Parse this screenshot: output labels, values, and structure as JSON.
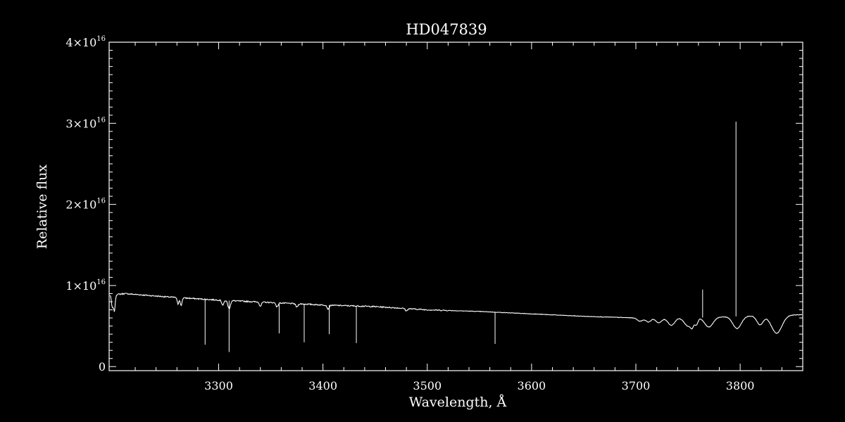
{
  "chart_data": {
    "type": "line",
    "title": "HD047839",
    "xlabel": "Wavelength, Å",
    "ylabel": "Relative flux",
    "xlim": [
      3195,
      3860
    ],
    "ylim": [
      -0.05,
      4.0
    ],
    "y_unit_exponent": "16",
    "x_ticks": [
      3300,
      3400,
      3500,
      3600,
      3700,
      3800
    ],
    "y_ticks": [
      0,
      1,
      2,
      3,
      4
    ],
    "y_tick_labels": [
      {
        "mantissa": "0",
        "exp": ""
      },
      {
        "mantissa": "1×10",
        "exp": "16"
      },
      {
        "mantissa": "2×10",
        "exp": "16"
      },
      {
        "mantissa": "3×10",
        "exp": "16"
      },
      {
        "mantissa": "4×10",
        "exp": "16"
      }
    ],
    "grid": false,
    "background_color": "#000000",
    "foreground_color": "#ffffff",
    "series": [
      {
        "continuum": [
          [
            3195,
            0.88
          ],
          [
            3210,
            0.9
          ],
          [
            3250,
            0.86
          ],
          [
            3300,
            0.82
          ],
          [
            3350,
            0.79
          ],
          [
            3400,
            0.76
          ],
          [
            3450,
            0.74
          ],
          [
            3500,
            0.7
          ],
          [
            3550,
            0.68
          ],
          [
            3600,
            0.65
          ],
          [
            3650,
            0.62
          ],
          [
            3700,
            0.6
          ],
          [
            3750,
            0.6
          ],
          [
            3800,
            0.62
          ],
          [
            3860,
            0.64
          ]
        ],
        "absorption_lines": [
          {
            "x": 3198,
            "depth": 0.15,
            "width": 0.8
          },
          {
            "x": 3200,
            "depth": 0.2,
            "width": 0.8
          },
          {
            "x": 3261,
            "depth": 0.08,
            "width": 0.8
          },
          {
            "x": 3264,
            "depth": 0.1,
            "width": 0.8
          },
          {
            "x": 3304,
            "depth": 0.06,
            "width": 1.0
          },
          {
            "x": 3310,
            "depth": 0.1,
            "width": 1.2
          },
          {
            "x": 3340,
            "depth": 0.05,
            "width": 1.0
          },
          {
            "x": 3356,
            "depth": 0.05,
            "width": 1.0
          },
          {
            "x": 3375,
            "depth": 0.04,
            "width": 1.0
          },
          {
            "x": 3405,
            "depth": 0.05,
            "width": 1.0
          },
          {
            "x": 3480,
            "depth": 0.03,
            "width": 1.0
          },
          {
            "x": 3704,
            "depth": 0.04,
            "width": 2.5
          },
          {
            "x": 3712,
            "depth": 0.05,
            "width": 2.5
          },
          {
            "x": 3722,
            "depth": 0.06,
            "width": 2.8
          },
          {
            "x": 3734,
            "depth": 0.09,
            "width": 3.2
          },
          {
            "x": 3750,
            "depth": 0.1,
            "width": 3.5
          },
          {
            "x": 3754,
            "depth": 0.08,
            "width": 1.5
          },
          {
            "x": 3758,
            "depth": 0.08,
            "width": 1.5
          },
          {
            "x": 3770,
            "depth": 0.12,
            "width": 4.0
          },
          {
            "x": 3797,
            "depth": 0.15,
            "width": 4.0
          },
          {
            "x": 3819,
            "depth": 0.11,
            "width": 3.0
          },
          {
            "x": 3835,
            "depth": 0.22,
            "width": 5.0
          }
        ],
        "spikes": [
          {
            "x": 3287,
            "y": 0.27
          },
          {
            "x": 3310,
            "y": 0.18
          },
          {
            "x": 3358,
            "y": 0.41
          },
          {
            "x": 3382,
            "y": 0.3
          },
          {
            "x": 3406,
            "y": 0.4
          },
          {
            "x": 3432,
            "y": 0.29
          },
          {
            "x": 3565,
            "y": 0.28
          },
          {
            "x": 3764,
            "y": 0.95
          },
          {
            "x": 3796,
            "y": 3.02
          }
        ]
      }
    ]
  }
}
